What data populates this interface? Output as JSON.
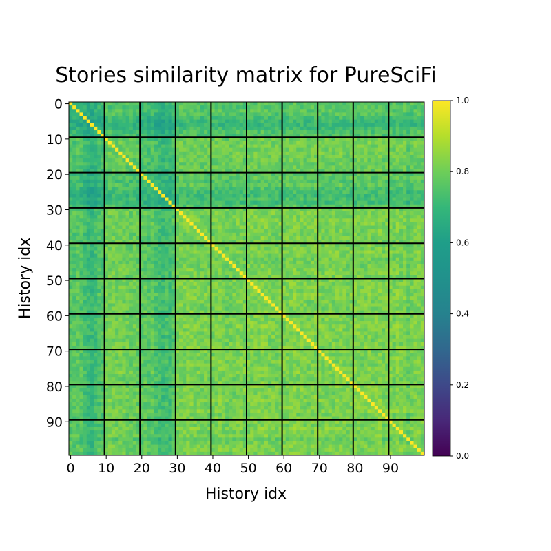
{
  "chart_data": {
    "type": "heatmap",
    "title": "Stories similarity matrix for PureSciFi",
    "xlabel": "History idx",
    "ylabel": "History idx",
    "size": 100,
    "x_ticks": [
      0,
      10,
      20,
      30,
      40,
      50,
      60,
      70,
      80,
      90
    ],
    "y_ticks": [
      0,
      10,
      20,
      30,
      40,
      50,
      60,
      70,
      80,
      90
    ],
    "block_boundaries": [
      9.5,
      19.5,
      29.5,
      39.5,
      49.5,
      59.5,
      69.5,
      79.5,
      89.5
    ],
    "diagonal_value": 1.0,
    "colormap": "viridis",
    "colorbar": {
      "ticks": [
        "0.0",
        "0.2",
        "0.4",
        "0.6",
        "0.8",
        "1.0"
      ],
      "range": [
        0,
        1
      ]
    },
    "row_mean_similarity": [
      0.72,
      0.71,
      0.73,
      0.7,
      0.66,
      0.62,
      0.6,
      0.64,
      0.68,
      0.69,
      0.78,
      0.79,
      0.8,
      0.78,
      0.8,
      0.79,
      0.77,
      0.76,
      0.76,
      0.75,
      0.72,
      0.74,
      0.7,
      0.73,
      0.68,
      0.65,
      0.62,
      0.66,
      0.63,
      0.7,
      0.8,
      0.82,
      0.81,
      0.82,
      0.83,
      0.82,
      0.81,
      0.79,
      0.81,
      0.8,
      0.8,
      0.81,
      0.82,
      0.8,
      0.78,
      0.79,
      0.8,
      0.81,
      0.82,
      0.8,
      0.82,
      0.82,
      0.83,
      0.82,
      0.84,
      0.83,
      0.81,
      0.82,
      0.8,
      0.82,
      0.81,
      0.82,
      0.83,
      0.84,
      0.82,
      0.83,
      0.81,
      0.8,
      0.82,
      0.83,
      0.82,
      0.8,
      0.83,
      0.82,
      0.81,
      0.82,
      0.84,
      0.82,
      0.8,
      0.81,
      0.82,
      0.83,
      0.8,
      0.82,
      0.83,
      0.81,
      0.82,
      0.84,
      0.8,
      0.82,
      0.82,
      0.8,
      0.83,
      0.81,
      0.82,
      0.76,
      0.8,
      0.82,
      0.83,
      0.81
    ]
  }
}
